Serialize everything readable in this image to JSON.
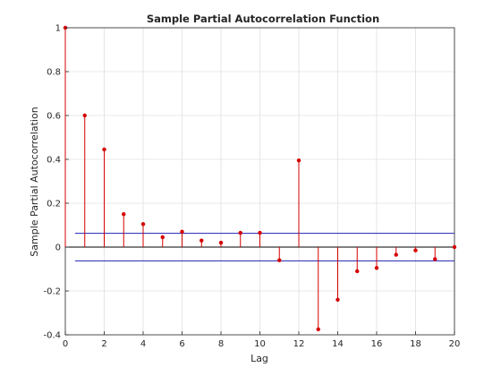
{
  "chart_data": {
    "type": "stem",
    "title": "Sample Partial Autocorrelation Function",
    "xlabel": "Lag",
    "ylabel": "Sample Partial Autocorrelation",
    "xlim": [
      0,
      20
    ],
    "ylim": [
      -0.4,
      1
    ],
    "xticks": [
      "0",
      "2",
      "4",
      "6",
      "8",
      "10",
      "12",
      "14",
      "16",
      "18",
      "20"
    ],
    "yticks": [
      "-0.4",
      "-0.2",
      "0",
      "0.2",
      "0.4",
      "0.6",
      "0.8",
      "1"
    ],
    "grid": true,
    "series": [
      {
        "x": [
          0,
          1,
          2,
          3,
          4,
          5,
          6,
          7,
          8,
          9,
          10,
          11,
          12,
          13,
          14,
          15,
          16,
          17,
          18,
          19,
          20
        ],
        "values": [
          1.0,
          0.6,
          0.445,
          0.15,
          0.105,
          0.045,
          0.07,
          0.03,
          0.02,
          0.065,
          0.065,
          -0.06,
          0.395,
          -0.375,
          -0.24,
          -0.11,
          -0.095,
          -0.035,
          -0.015,
          -0.055,
          0.0
        ]
      }
    ],
    "confidence_bounds": [
      0.063,
      -0.063
    ],
    "colors": {
      "stem": "#d40000",
      "bounds": "#1f1fb4",
      "grid": "#e0e0e0",
      "axis": "#262626"
    }
  }
}
